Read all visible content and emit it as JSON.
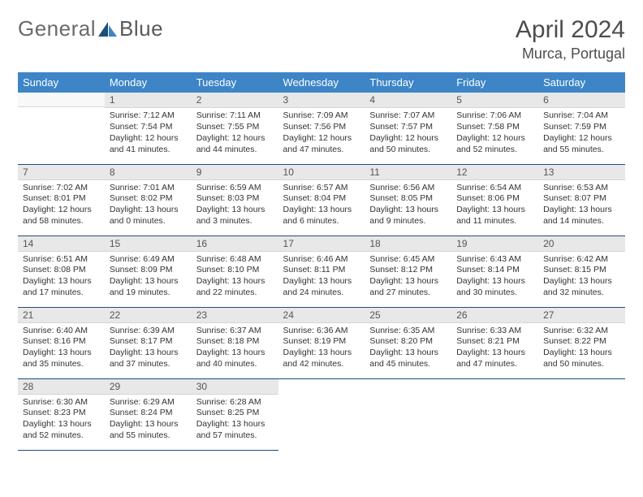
{
  "brand": {
    "first": "General",
    "second": "Blue"
  },
  "title": "April 2024",
  "location": "Murca, Portugal",
  "accent_color": "#3d85c6",
  "rule_color": "#1f4e79",
  "daynum_bg": "#e8e8e8",
  "weekdays": [
    "Sunday",
    "Monday",
    "Tuesday",
    "Wednesday",
    "Thursday",
    "Friday",
    "Saturday"
  ],
  "first_weekday_index": 1,
  "days": [
    {
      "n": 1,
      "sunrise": "7:12 AM",
      "sunset": "7:54 PM",
      "dl": "12 hours and 41 minutes."
    },
    {
      "n": 2,
      "sunrise": "7:11 AM",
      "sunset": "7:55 PM",
      "dl": "12 hours and 44 minutes."
    },
    {
      "n": 3,
      "sunrise": "7:09 AM",
      "sunset": "7:56 PM",
      "dl": "12 hours and 47 minutes."
    },
    {
      "n": 4,
      "sunrise": "7:07 AM",
      "sunset": "7:57 PM",
      "dl": "12 hours and 50 minutes."
    },
    {
      "n": 5,
      "sunrise": "7:06 AM",
      "sunset": "7:58 PM",
      "dl": "12 hours and 52 minutes."
    },
    {
      "n": 6,
      "sunrise": "7:04 AM",
      "sunset": "7:59 PM",
      "dl": "12 hours and 55 minutes."
    },
    {
      "n": 7,
      "sunrise": "7:02 AM",
      "sunset": "8:01 PM",
      "dl": "12 hours and 58 minutes."
    },
    {
      "n": 8,
      "sunrise": "7:01 AM",
      "sunset": "8:02 PM",
      "dl": "13 hours and 0 minutes."
    },
    {
      "n": 9,
      "sunrise": "6:59 AM",
      "sunset": "8:03 PM",
      "dl": "13 hours and 3 minutes."
    },
    {
      "n": 10,
      "sunrise": "6:57 AM",
      "sunset": "8:04 PM",
      "dl": "13 hours and 6 minutes."
    },
    {
      "n": 11,
      "sunrise": "6:56 AM",
      "sunset": "8:05 PM",
      "dl": "13 hours and 9 minutes."
    },
    {
      "n": 12,
      "sunrise": "6:54 AM",
      "sunset": "8:06 PM",
      "dl": "13 hours and 11 minutes."
    },
    {
      "n": 13,
      "sunrise": "6:53 AM",
      "sunset": "8:07 PM",
      "dl": "13 hours and 14 minutes."
    },
    {
      "n": 14,
      "sunrise": "6:51 AM",
      "sunset": "8:08 PM",
      "dl": "13 hours and 17 minutes."
    },
    {
      "n": 15,
      "sunrise": "6:49 AM",
      "sunset": "8:09 PM",
      "dl": "13 hours and 19 minutes."
    },
    {
      "n": 16,
      "sunrise": "6:48 AM",
      "sunset": "8:10 PM",
      "dl": "13 hours and 22 minutes."
    },
    {
      "n": 17,
      "sunrise": "6:46 AM",
      "sunset": "8:11 PM",
      "dl": "13 hours and 24 minutes."
    },
    {
      "n": 18,
      "sunrise": "6:45 AM",
      "sunset": "8:12 PM",
      "dl": "13 hours and 27 minutes."
    },
    {
      "n": 19,
      "sunrise": "6:43 AM",
      "sunset": "8:14 PM",
      "dl": "13 hours and 30 minutes."
    },
    {
      "n": 20,
      "sunrise": "6:42 AM",
      "sunset": "8:15 PM",
      "dl": "13 hours and 32 minutes."
    },
    {
      "n": 21,
      "sunrise": "6:40 AM",
      "sunset": "8:16 PM",
      "dl": "13 hours and 35 minutes."
    },
    {
      "n": 22,
      "sunrise": "6:39 AM",
      "sunset": "8:17 PM",
      "dl": "13 hours and 37 minutes."
    },
    {
      "n": 23,
      "sunrise": "6:37 AM",
      "sunset": "8:18 PM",
      "dl": "13 hours and 40 minutes."
    },
    {
      "n": 24,
      "sunrise": "6:36 AM",
      "sunset": "8:19 PM",
      "dl": "13 hours and 42 minutes."
    },
    {
      "n": 25,
      "sunrise": "6:35 AM",
      "sunset": "8:20 PM",
      "dl": "13 hours and 45 minutes."
    },
    {
      "n": 26,
      "sunrise": "6:33 AM",
      "sunset": "8:21 PM",
      "dl": "13 hours and 47 minutes."
    },
    {
      "n": 27,
      "sunrise": "6:32 AM",
      "sunset": "8:22 PM",
      "dl": "13 hours and 50 minutes."
    },
    {
      "n": 28,
      "sunrise": "6:30 AM",
      "sunset": "8:23 PM",
      "dl": "13 hours and 52 minutes."
    },
    {
      "n": 29,
      "sunrise": "6:29 AM",
      "sunset": "8:24 PM",
      "dl": "13 hours and 55 minutes."
    },
    {
      "n": 30,
      "sunrise": "6:28 AM",
      "sunset": "8:25 PM",
      "dl": "13 hours and 57 minutes."
    }
  ],
  "labels": {
    "sunrise": "Sunrise:",
    "sunset": "Sunset:",
    "daylight": "Daylight:"
  }
}
